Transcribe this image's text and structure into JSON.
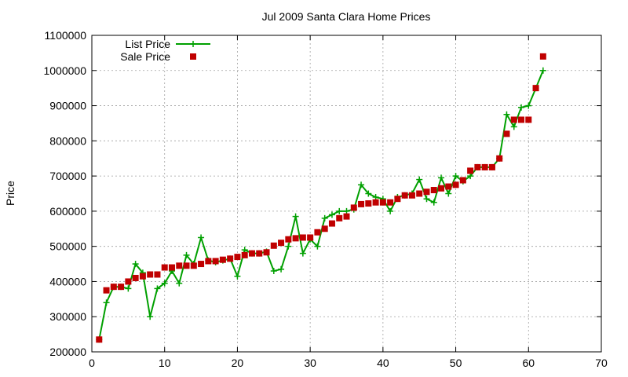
{
  "chart_data": {
    "type": "line",
    "title": "Jul 2009 Santa Clara Home Prices",
    "xlabel": "",
    "ylabel": "Price",
    "xlim": [
      0,
      70
    ],
    "ylim": [
      200000,
      1100000
    ],
    "xticks": [
      0,
      10,
      20,
      30,
      40,
      50,
      60,
      70
    ],
    "yticks": [
      200000,
      300000,
      400000,
      500000,
      600000,
      700000,
      800000,
      900000,
      1000000,
      1100000
    ],
    "grid": true,
    "legend_position": "top-left",
    "series": [
      {
        "name": "List Price",
        "style": "line-plus",
        "color": "#00a000",
        "x": [
          1,
          2,
          3,
          4,
          5,
          6,
          7,
          8,
          9,
          10,
          11,
          12,
          13,
          14,
          15,
          16,
          17,
          18,
          19,
          20,
          21,
          22,
          23,
          24,
          25,
          26,
          27,
          28,
          29,
          30,
          31,
          32,
          33,
          34,
          35,
          36,
          37,
          38,
          39,
          40,
          41,
          42,
          43,
          44,
          45,
          46,
          47,
          48,
          49,
          50,
          51,
          52,
          53,
          54,
          55,
          56,
          57,
          58,
          59,
          60,
          61,
          62
        ],
        "y": [
          235000,
          340000,
          385000,
          385000,
          380000,
          450000,
          425000,
          300000,
          380000,
          395000,
          430000,
          395000,
          475000,
          450000,
          525000,
          460000,
          455000,
          460000,
          465000,
          415000,
          490000,
          480000,
          480000,
          485000,
          430000,
          435000,
          500000,
          585000,
          480000,
          520000,
          500000,
          580000,
          590000,
          600000,
          600000,
          605000,
          675000,
          650000,
          640000,
          635000,
          600000,
          640000,
          645000,
          650000,
          690000,
          635000,
          625000,
          695000,
          650000,
          700000,
          685000,
          700000,
          725000,
          725000,
          725000,
          750000,
          875000,
          840000,
          895000,
          900000,
          950000,
          1000000
        ]
      },
      {
        "name": "Sale Price",
        "style": "square",
        "color": "#c00000",
        "x": [
          1,
          2,
          3,
          4,
          5,
          6,
          7,
          8,
          9,
          10,
          11,
          12,
          13,
          14,
          15,
          16,
          17,
          18,
          19,
          20,
          21,
          22,
          23,
          24,
          25,
          26,
          27,
          28,
          29,
          30,
          31,
          32,
          33,
          34,
          35,
          36,
          37,
          38,
          39,
          40,
          41,
          42,
          43,
          44,
          45,
          46,
          47,
          48,
          49,
          50,
          51,
          52,
          53,
          54,
          55,
          56,
          57,
          58,
          59,
          60,
          61,
          62
        ],
        "y": [
          235000,
          375000,
          385000,
          385000,
          400000,
          410000,
          415000,
          420000,
          420000,
          440000,
          440000,
          445000,
          445000,
          445000,
          450000,
          458000,
          458000,
          462000,
          465000,
          470000,
          475000,
          480000,
          480000,
          483000,
          502000,
          510000,
          520000,
          523000,
          525000,
          525000,
          540000,
          550000,
          565000,
          580000,
          585000,
          610000,
          620000,
          622000,
          625000,
          625000,
          625000,
          635000,
          645000,
          645000,
          650000,
          655000,
          660000,
          665000,
          670000,
          675000,
          688000,
          715000,
          725000,
          725000,
          725000,
          750000,
          820000,
          860000,
          860000,
          860000,
          950000,
          1040000
        ]
      }
    ]
  }
}
